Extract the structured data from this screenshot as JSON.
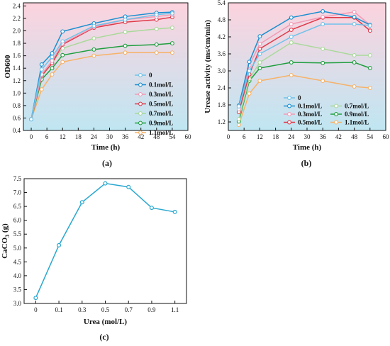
{
  "panels": {
    "a": {
      "label": "(a)"
    },
    "b": {
      "label": "(b)"
    },
    "c": {
      "label": "(c)"
    }
  },
  "chart_data": [
    {
      "id": "a",
      "type": "line",
      "xlabel": "Time (h)",
      "ylabel": "OD600",
      "xlim": [
        -3,
        60
      ],
      "ylim": [
        0.4,
        2.45
      ],
      "xticks": [
        0,
        6,
        12,
        18,
        24,
        30,
        36,
        42,
        48,
        54,
        60
      ],
      "yticks": [
        0.4,
        0.6,
        0.8,
        1.0,
        1.2,
        1.4,
        1.6,
        1.8,
        2.0,
        2.2,
        2.4
      ],
      "legend": "bottom-right",
      "background_gradient": [
        "#fcd3de",
        "#bfe6f2"
      ],
      "x": [
        0,
        4,
        8,
        12,
        24,
        36,
        48,
        54
      ],
      "series": [
        {
          "name": "0",
          "color": "#6fc2ea",
          "values": [
            0.58,
            1.38,
            1.58,
            1.83,
            2.08,
            2.18,
            2.26,
            2.28
          ]
        },
        {
          "name": "0.1mol/L",
          "color": "#1a8fd1",
          "values": [
            0.58,
            1.46,
            1.64,
            1.99,
            2.12,
            2.23,
            2.29,
            2.3
          ]
        },
        {
          "name": "0.3mol/L",
          "color": "#f29ab5",
          "values": [
            0.58,
            1.3,
            1.52,
            1.8,
            2.06,
            2.18,
            2.23,
            2.26
          ]
        },
        {
          "name": "0.5mol/L",
          "color": "#e03a4a",
          "values": [
            0.58,
            1.28,
            1.48,
            1.78,
            2.05,
            2.14,
            2.18,
            2.22
          ]
        },
        {
          "name": "0.7mol/L",
          "color": "#a9d99a",
          "values": [
            0.58,
            1.27,
            1.48,
            1.72,
            1.88,
            1.98,
            2.03,
            2.05
          ]
        },
        {
          "name": "0.9mol/L",
          "color": "#1f9e3e",
          "values": [
            0.58,
            1.22,
            1.4,
            1.61,
            1.7,
            1.76,
            1.78,
            1.8
          ]
        },
        {
          "name": "1.1mol/L",
          "color": "#f7b267",
          "values": [
            0.58,
            1.06,
            1.3,
            1.5,
            1.6,
            1.65,
            1.65,
            1.65
          ]
        }
      ]
    },
    {
      "id": "b",
      "type": "line",
      "xlabel": "Time (h)",
      "ylabel": "Urease activity (ms/cm/min)",
      "xlim": [
        0,
        60
      ],
      "ylim": [
        0.9,
        5.4
      ],
      "xticks": [
        0,
        6,
        12,
        18,
        24,
        30,
        36,
        42,
        48,
        54,
        60
      ],
      "yticks": [
        1.2,
        1.8,
        2.4,
        3.0,
        3.6,
        4.2,
        4.8,
        5.4
      ],
      "legend": "bottom-center",
      "background_gradient": [
        "#fcd3de",
        "#bfe6f2"
      ],
      "x": [
        4,
        8,
        12,
        24,
        36,
        48,
        54
      ],
      "series": [
        {
          "name": "0",
          "color": "#6fc2ea",
          "values": [
            1.75,
            3.0,
            3.6,
            4.2,
            4.65,
            4.65,
            4.6
          ]
        },
        {
          "name": "0.1mol/L",
          "color": "#1a8fd1",
          "values": [
            1.78,
            3.32,
            4.22,
            4.88,
            5.1,
            4.9,
            4.62
          ]
        },
        {
          "name": "0.3mol/L",
          "color": "#f29ab5",
          "values": [
            1.65,
            3.2,
            3.95,
            4.65,
            4.9,
            5.08,
            4.62
          ]
        },
        {
          "name": "0.5mol/L",
          "color": "#e03a4a",
          "values": [
            1.55,
            2.88,
            3.78,
            4.45,
            4.88,
            4.88,
            4.42
          ]
        },
        {
          "name": "0.7mol/L",
          "color": "#a9d99a",
          "values": [
            1.3,
            2.72,
            3.3,
            4.0,
            3.78,
            3.55,
            3.55
          ]
        },
        {
          "name": "0.9mol/L",
          "color": "#1f9e3e",
          "values": [
            1.22,
            2.65,
            3.1,
            3.3,
            3.28,
            3.3,
            3.1
          ]
        },
        {
          "name": "1.1mol/L",
          "color": "#f7b267",
          "values": [
            1.1,
            2.2,
            2.65,
            2.85,
            2.65,
            2.45,
            2.4
          ]
        }
      ]
    },
    {
      "id": "c",
      "type": "line",
      "xlabel": "Urea (mol/L)",
      "ylabel": "CaCO3 (g)",
      "ylabel_main": "CaCO",
      "ylabel_sub": "3",
      "ylabel_tail": " (g)",
      "categories": [
        "0",
        "0.1",
        "0.3",
        "0.5",
        "0.7",
        "0.9",
        "1.1"
      ],
      "ylim": [
        3.0,
        7.5
      ],
      "yticks": [
        3.0,
        3.5,
        4.0,
        4.5,
        5.0,
        5.5,
        6.0,
        6.5,
        7.0,
        7.5
      ],
      "series": [
        {
          "color": "#29a8cf",
          "values": [
            3.2,
            5.1,
            6.65,
            7.33,
            7.2,
            6.45,
            6.3
          ]
        }
      ]
    }
  ]
}
